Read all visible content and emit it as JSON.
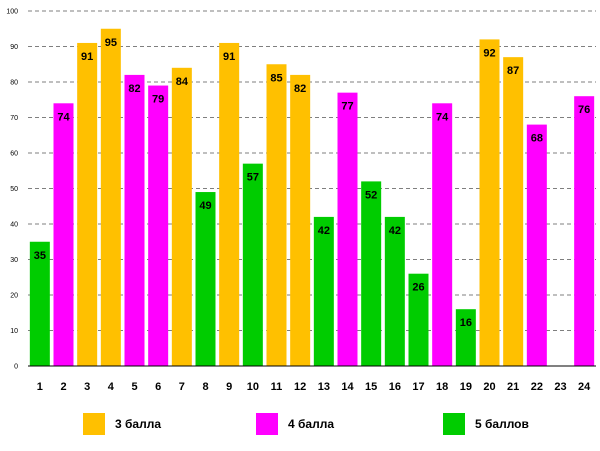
{
  "chart_data": {
    "type": "bar",
    "categories": [
      "1",
      "2",
      "3",
      "4",
      "5",
      "6",
      "7",
      "8",
      "9",
      "10",
      "11",
      "12",
      "13",
      "14",
      "15",
      "16",
      "17",
      "18",
      "19",
      "20",
      "21",
      "22",
      "23",
      "24"
    ],
    "values": [
      35,
      74,
      91,
      95,
      82,
      79,
      84,
      49,
      91,
      57,
      85,
      82,
      42,
      77,
      52,
      42,
      26,
      74,
      16,
      92,
      87,
      68,
      null,
      76
    ],
    "groups": [
      "5",
      "4",
      "3",
      "3",
      "4",
      "4",
      "3",
      "5",
      "3",
      "5",
      "3",
      "3",
      "5",
      "4",
      "5",
      "5",
      "5",
      "4",
      "5",
      "3",
      "3",
      "4",
      null,
      "4"
    ],
    "data_labels": [
      "35",
      "74",
      "91",
      "95",
      "82",
      "79",
      "84",
      "49",
      "91",
      "57",
      "85",
      "82",
      "42",
      "77",
      "52",
      "42",
      "26",
      "74",
      "16",
      "92",
      "87",
      "68",
      "",
      "76"
    ],
    "ylim": [
      0,
      100
    ],
    "yticks": [
      "0",
      "10",
      "20",
      "30",
      "40",
      "50",
      "60",
      "70",
      "80",
      "90",
      "100"
    ],
    "grid": true,
    "legend": [
      {
        "key": "3",
        "label": "3 балла",
        "color": "#FFC000"
      },
      {
        "key": "4",
        "label": "4 балла",
        "color": "#FF00FF"
      },
      {
        "key": "5",
        "label": "5 баллов",
        "color": "#00CC00"
      }
    ],
    "colors": {
      "3": "#FFC000",
      "4": "#FF00FF",
      "5": "#00CC00"
    }
  }
}
